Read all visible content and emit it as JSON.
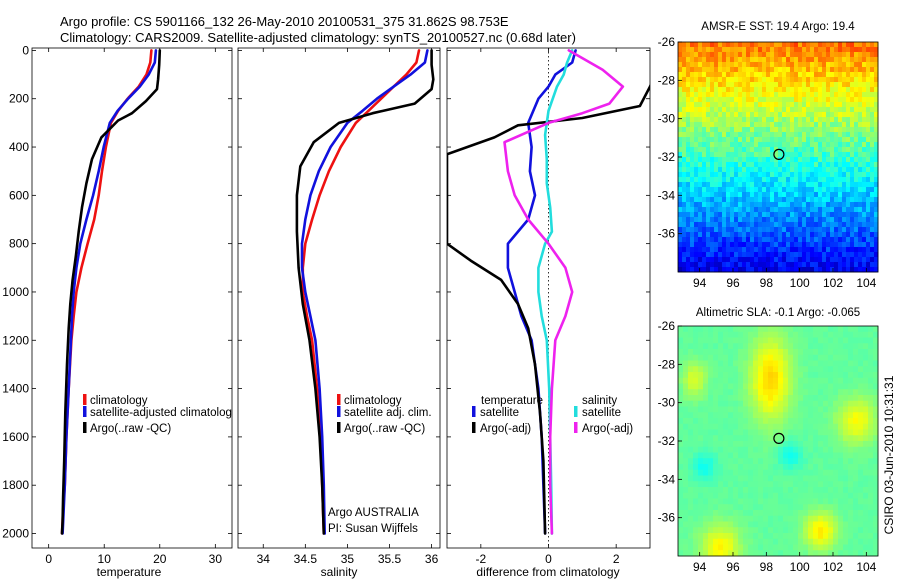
{
  "header": {
    "line1": "Argo profile: CS 5901166_132 26-May-2010 20100531_375 31.862S 98.753E",
    "line2": "Climatology: CARS2009. Satellite-adjusted climatology: synTS_20100527.nc (0.68d later)"
  },
  "colors": {
    "climatology": "#ee1111",
    "satellite": "#1111dd",
    "argo": "#000000",
    "satellite_salinity": "#22dddd",
    "argo_salinity": "#ee22ee"
  },
  "chart_data": [
    {
      "type": "line",
      "id": "temperature",
      "xlabel": "temperature",
      "ylabel": "",
      "xlim": [
        -3,
        33
      ],
      "ylim": [
        2060,
        -10
      ],
      "y_reversed": true,
      "xticks": [
        0,
        10,
        20,
        30
      ],
      "yticks": [
        0,
        200,
        400,
        600,
        800,
        1000,
        1200,
        1400,
        1600,
        1800,
        2000
      ],
      "legend": {
        "placement": "lower-center",
        "entries": [
          "climatology",
          "satellite-adjusted climatolog",
          "Argo(..raw -QC)"
        ]
      },
      "series": [
        {
          "name": "climatology",
          "color": "#ee1111",
          "x": [
            18.5,
            18.3,
            17.6,
            16.2,
            14.2,
            12.5,
            11.2,
            10.3,
            9.6,
            9.0,
            8.2,
            7.0,
            5.9,
            5.0,
            4.5,
            4.1,
            3.6,
            3.2,
            2.9,
            2.6,
            2.4
          ],
          "y": [
            0,
            50,
            100,
            150,
            200,
            250,
            300,
            400,
            500,
            600,
            700,
            800,
            900,
            1000,
            1100,
            1200,
            1400,
            1600,
            1800,
            1900,
            2000
          ]
        },
        {
          "name": "satellite-adjusted climatolog",
          "color": "#1111dd",
          "x": [
            19.3,
            19.1,
            18.0,
            16.4,
            14.3,
            12.4,
            11.0,
            9.9,
            9.0,
            8.0,
            6.8,
            5.7,
            5.0,
            4.5,
            4.2,
            4.0,
            3.6,
            3.2,
            2.9,
            2.7,
            2.5
          ],
          "y": [
            0,
            50,
            100,
            150,
            200,
            250,
            300,
            400,
            500,
            600,
            700,
            800,
            900,
            1000,
            1100,
            1200,
            1400,
            1600,
            1800,
            1900,
            2000
          ]
        },
        {
          "name": "Argo(..raw -QC)",
          "color": "#000000",
          "x": [
            20.0,
            19.9,
            19.7,
            19.5,
            17.5,
            15.0,
            12.5,
            9.5,
            7.8,
            6.8,
            6.0,
            5.4,
            4.9,
            4.3,
            3.9,
            3.6,
            3.3,
            3.0,
            2.8,
            2.6,
            2.5,
            2.4
          ],
          "y": [
            0,
            60,
            120,
            160,
            210,
            260,
            290,
            360,
            450,
            550,
            650,
            750,
            850,
            950,
            1050,
            1150,
            1300,
            1500,
            1700,
            1850,
            1950,
            2000
          ]
        }
      ]
    },
    {
      "type": "line",
      "id": "salinity",
      "xlabel": "salinity",
      "ylabel": "",
      "xlim": [
        33.7,
        36.1
      ],
      "ylim": [
        2060,
        -10
      ],
      "y_reversed": true,
      "xticks": [
        34,
        34.5,
        35,
        35.5,
        36
      ],
      "xtick_labels": [
        "34",
        "34.5",
        "35",
        "35.5",
        "36"
      ],
      "legend": {
        "placement": "lower-right",
        "entries": [
          "climatology",
          "satellite adj. clim.",
          "Argo(..raw -QC)"
        ]
      },
      "annotations": [
        "Argo AUSTRALIA",
        "PI: Susan Wijffels"
      ],
      "series": [
        {
          "name": "climatology",
          "color": "#ee1111",
          "x": [
            35.85,
            35.82,
            35.7,
            35.55,
            35.4,
            35.25,
            35.1,
            34.92,
            34.78,
            34.67,
            34.58,
            34.5,
            34.47,
            34.47,
            34.52,
            34.58,
            34.64,
            34.68,
            34.7,
            34.72
          ],
          "y": [
            0,
            50,
            100,
            150,
            200,
            250,
            300,
            400,
            500,
            600,
            700,
            800,
            900,
            1000,
            1100,
            1200,
            1400,
            1600,
            1800,
            2000
          ]
        },
        {
          "name": "satellite adj. clim.",
          "color": "#1111dd",
          "x": [
            35.95,
            35.92,
            35.75,
            35.55,
            35.35,
            35.18,
            35.0,
            34.8,
            34.66,
            34.56,
            34.5,
            34.46,
            34.46,
            34.5,
            34.56,
            34.62,
            34.67,
            34.7,
            34.72,
            34.73
          ],
          "y": [
            0,
            50,
            100,
            150,
            200,
            250,
            300,
            400,
            500,
            600,
            700,
            800,
            900,
            1000,
            1100,
            1200,
            1400,
            1600,
            1800,
            2000
          ]
        },
        {
          "name": "Argo(..raw -QC)",
          "color": "#000000",
          "x": [
            36.0,
            36.0,
            36.02,
            36.0,
            35.8,
            35.3,
            34.9,
            34.6,
            34.44,
            34.4,
            34.4,
            34.42,
            34.47,
            34.55,
            34.62,
            34.67,
            34.7,
            34.72
          ],
          "y": [
            0,
            60,
            120,
            160,
            220,
            260,
            300,
            380,
            480,
            600,
            750,
            900,
            1050,
            1200,
            1400,
            1600,
            1800,
            2000
          ]
        }
      ]
    },
    {
      "type": "line",
      "id": "difference",
      "xlabel": "difference from climatology",
      "ylabel": "",
      "xlim": [
        -3,
        3
      ],
      "ylim": [
        2060,
        -10
      ],
      "y_reversed": true,
      "xticks": [
        -2,
        0,
        2
      ],
      "zero_line": "dotted",
      "legend": {
        "placement": "lower-center",
        "temperature_heading": "temperature",
        "salinity_heading": "salinity",
        "entries": [
          "satellite",
          "Argo(-adj)",
          "satellite",
          "Argo(-adj)"
        ]
      },
      "series": [
        {
          "name": "satellite",
          "group": "temperature",
          "color": "#1111dd",
          "x": [
            0.8,
            0.7,
            0.2,
            0.0,
            -0.3,
            -0.6,
            -0.5,
            -0.55,
            -0.4,
            -0.6,
            -1.2,
            -1.2,
            -1.0,
            -0.8,
            -0.5,
            -0.3,
            -0.2,
            -0.15,
            -0.1
          ],
          "y": [
            0,
            50,
            100,
            150,
            200,
            300,
            400,
            500,
            600,
            700,
            800,
            900,
            1000,
            1100,
            1200,
            1400,
            1600,
            1800,
            2000
          ]
        },
        {
          "name": "Argo(-adj)",
          "group": "temperature",
          "color": "#000000",
          "x": [
            3.3,
            3.3,
            3.0,
            2.7,
            1.0,
            -0.9,
            -1.6,
            -3.0,
            -3.0,
            -3.0,
            -3.0,
            -2.3,
            -1.4,
            -0.9,
            -0.6,
            -0.4,
            -0.25,
            -0.15,
            -0.1
          ],
          "y": [
            0,
            60,
            150,
            230,
            280,
            310,
            360,
            430,
            600,
            700,
            800,
            870,
            950,
            1050,
            1150,
            1300,
            1500,
            1700,
            2000
          ]
        },
        {
          "name": "satellite",
          "group": "salinity",
          "color": "#22dddd",
          "x": [
            0.7,
            0.55,
            0.45,
            0.25,
            0.0,
            -0.1,
            -0.05,
            -0.05,
            0.05,
            0.1,
            -0.1,
            -0.3,
            -0.3,
            -0.2,
            -0.05,
            0.02,
            0.05,
            0.08,
            0.1
          ],
          "y": [
            0,
            50,
            100,
            150,
            250,
            350,
            450,
            550,
            650,
            750,
            800,
            900,
            1000,
            1100,
            1200,
            1400,
            1600,
            1800,
            2000
          ]
        },
        {
          "name": "Argo(-adj)",
          "group": "salinity",
          "color": "#ee22ee",
          "x": [
            0.6,
            1.6,
            2.2,
            1.8,
            1.0,
            0.0,
            -1.3,
            -1.2,
            -1.0,
            -0.6,
            0.0,
            0.5,
            0.7,
            0.5,
            0.2,
            0.1,
            0.05,
            0.05,
            0.1
          ],
          "y": [
            0,
            80,
            150,
            220,
            260,
            300,
            380,
            500,
            600,
            700,
            800,
            900,
            1000,
            1100,
            1200,
            1400,
            1600,
            1800,
            2000
          ]
        }
      ]
    },
    {
      "type": "heatmap",
      "id": "sst_map",
      "title": "AMSR-E SST: 19.4 Argo: 19.4",
      "xlim": [
        92.7,
        104.7
      ],
      "ylim": [
        -38,
        -26
      ],
      "xticks": [
        94,
        96,
        98,
        100,
        102,
        104
      ],
      "yticks": [
        -26,
        -28,
        -30,
        -32,
        -34,
        -36
      ],
      "marker": {
        "lon": 98.753,
        "lat": -31.862
      },
      "colormap": "jet",
      "value_range_C": [
        17.5,
        21.5
      ],
      "trend": "values decrease southward: about 21 C near -26 to about 18 C near -38"
    },
    {
      "type": "heatmap",
      "id": "sla_map",
      "title": "Altimetric SLA: -0.1 Argo: -0.065",
      "xlim": [
        92.7,
        104.7
      ],
      "ylim": [
        -38,
        -26
      ],
      "xticks": [
        94,
        96,
        98,
        100,
        102,
        104
      ],
      "yticks": [
        -26,
        -28,
        -30,
        -32,
        -34,
        -36
      ],
      "marker": {
        "lon": 98.753,
        "lat": -31.862
      },
      "colormap": "jet",
      "value_range_m": [
        -0.3,
        0.3
      ]
    }
  ],
  "footer": {
    "vertical_label": "CSIRO 03-Jun-2010 10:31:31"
  }
}
